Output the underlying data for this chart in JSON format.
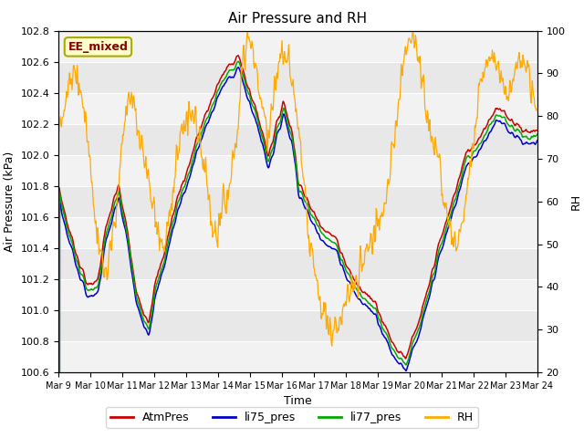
{
  "title": "Air Pressure and RH",
  "xlabel": "Time",
  "ylabel_left": "Air Pressure (kPa)",
  "ylabel_right": "RH",
  "annotation": "EE_mixed",
  "ylim_left": [
    100.6,
    102.8
  ],
  "ylim_right": [
    20,
    100
  ],
  "yticks_left": [
    100.6,
    100.8,
    101.0,
    101.2,
    101.4,
    101.6,
    101.8,
    102.0,
    102.2,
    102.4,
    102.6,
    102.8
  ],
  "yticks_right": [
    20,
    30,
    40,
    50,
    60,
    70,
    80,
    90,
    100
  ],
  "xtick_labels": [
    "Mar 9",
    "Mar 10",
    "Mar 11",
    "Mar 12",
    "Mar 13",
    "Mar 14",
    "Mar 15",
    "Mar 16",
    "Mar 17",
    "Mar 18",
    "Mar 19",
    "Mar 20",
    "Mar 21",
    "Mar 22",
    "Mar 23",
    "Mar 24"
  ],
  "colors": {
    "AtmPres": "#cc0000",
    "li75_pres": "#0000cc",
    "li77_pres": "#00aa00",
    "RH": "#ffaa00"
  },
  "background_color": "#e8e8e8",
  "band_color": "#d0d0d0",
  "annotation_bg": "#ffffcc",
  "annotation_text_color": "#880000",
  "annotation_edge_color": "#aaaa00",
  "legend_entries": [
    "AtmPres",
    "li75_pres",
    "li77_pres",
    "RH"
  ]
}
